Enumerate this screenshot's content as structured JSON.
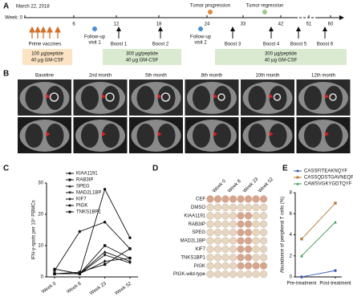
{
  "panel_labels": [
    "A",
    "B",
    "C",
    "D",
    "E"
  ],
  "timeline": {
    "date": "March 22, 2018",
    "week_label": "Week: 0",
    "ticks": [
      6,
      12,
      18,
      24,
      33,
      42,
      51,
      60
    ],
    "tumor_progression": "Tumor progression",
    "tumor_regression": "Tumor regression",
    "prime": "Prime vaccines",
    "followup": [
      [
        "Follow-up",
        "visit 1"
      ],
      [
        "Follow-up",
        "visit 2"
      ]
    ],
    "boosts": [
      "Boost 1",
      "Boost 2",
      "Boost 3",
      "Boost 4",
      "Boost 5",
      "Boost 6"
    ],
    "doses": [
      [
        "100 μg/peptide",
        "40 μg GM-CSF"
      ],
      [
        "300 μg/peptide",
        "40 μg GM-CSF"
      ],
      [
        "300 μg/peptide",
        "40 μg GM-CSF"
      ]
    ]
  },
  "ct": {
    "timepoints": [
      "Baseline",
      "2nd month",
      "5th month",
      "8th month",
      "10th month",
      "12th month"
    ]
  },
  "elispot": {
    "columns": [
      "Week 0",
      "Week 8",
      "Week 23",
      "Week 52"
    ],
    "rows": [
      "CEF",
      "DMSO",
      "KIAA1191",
      "RAB3IP",
      "SPEG",
      "MAD2L1BP",
      "KIF7",
      "TNKS1BP1",
      "PIGK",
      "PIGK-wild-type"
    ]
  },
  "chart_data": [
    {
      "type": "line",
      "ylabel": "IFN-γ-spots per 10⁵ PBMCs",
      "categories": [
        "Week 0",
        "Week 8",
        "Week 23",
        "Week 52"
      ],
      "ylim": [
        0,
        30
      ],
      "yticks": [
        0,
        10,
        20,
        30
      ],
      "legend": "upper left",
      "series": [
        {
          "name": "KIAA1191",
          "color": "#111111",
          "marker": "circle",
          "values": [
            2,
            14.5,
            17.5,
            9
          ]
        },
        {
          "name": "RAB3IP",
          "color": "#111111",
          "marker": "square",
          "values": [
            1,
            1,
            10,
            6
          ]
        },
        {
          "name": "SPEG",
          "color": "#111111",
          "marker": "triangle-up",
          "values": [
            1,
            1,
            8,
            5
          ]
        },
        {
          "name": "MAD2L1BP",
          "color": "#111111",
          "marker": "triangle-down",
          "values": [
            1,
            1,
            7,
            4.5
          ]
        },
        {
          "name": "KIF7",
          "color": "#111111",
          "marker": "diamond",
          "values": [
            1,
            1,
            5,
            6
          ]
        },
        {
          "name": "PIGK",
          "color": "#111111",
          "marker": "circle",
          "values": [
            2.5,
            1,
            28,
            12.5
          ]
        },
        {
          "name": "TNKS1BP1",
          "color": "#111111",
          "marker": "square",
          "values": [
            1,
            1.5,
            4,
            9
          ]
        }
      ]
    },
    {
      "type": "line",
      "ylabel": "Abundance of peripheral T cells (%)",
      "categories": [
        "Pre-treatment",
        "Post-treatment"
      ],
      "ylim": [
        0,
        8
      ],
      "yticks": [
        0,
        2,
        4,
        6,
        8
      ],
      "legend": "upper left",
      "series": [
        {
          "name": "CASSFITEAKNQYF",
          "color": "#3a5fb0",
          "marker": "circle",
          "values": [
            0,
            0.6
          ]
        },
        {
          "name": "CASSQDSTGAVNEQFF",
          "color": "#b5793a",
          "marker": "square",
          "values": [
            3.6,
            7
          ]
        },
        {
          "name": "CAWSVGKYGDTQYF",
          "color": "#3a9a55",
          "marker": "triangle-up",
          "values": [
            2,
            5.2
          ]
        }
      ]
    }
  ]
}
